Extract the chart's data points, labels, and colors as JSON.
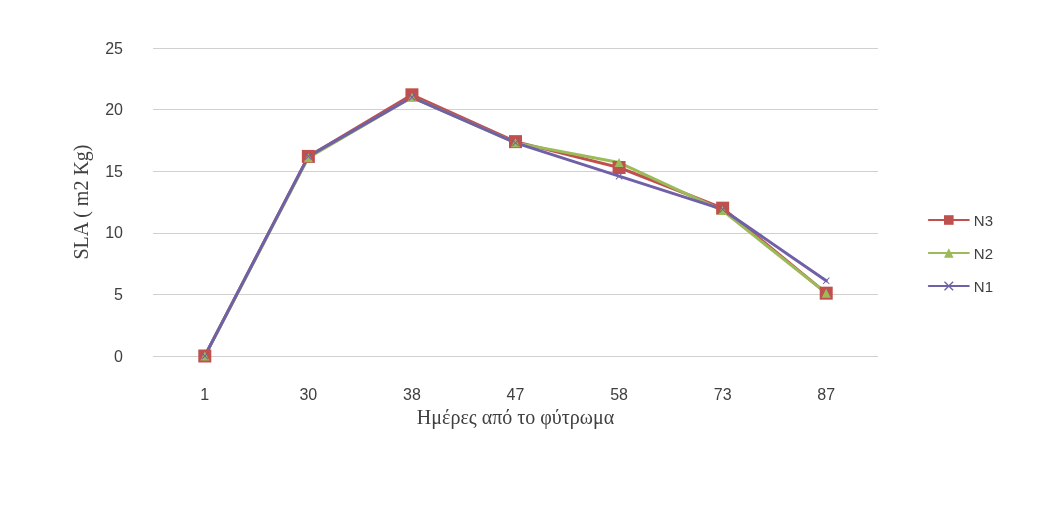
{
  "chart_data": {
    "type": "line",
    "xlabel": "Ημέρες από το φύτρωμα",
    "ylabel": "SLA ( m2 Kg)",
    "categories": [
      "1",
      "30",
      "38",
      "47",
      "58",
      "73",
      "87"
    ],
    "ylim": [
      0,
      25
    ],
    "yticks": [
      0,
      5,
      10,
      15,
      20,
      25
    ],
    "grid": "y",
    "legend": "right",
    "series": [
      {
        "name": "N3",
        "color": "#c0504d",
        "marker": "square",
        "values": [
          0,
          16.2,
          21.2,
          17.4,
          15.3,
          12.0,
          5.1
        ]
      },
      {
        "name": "N2",
        "color": "#9bbb59",
        "marker": "triangle",
        "values": [
          0,
          16.1,
          21.0,
          17.3,
          15.7,
          11.8,
          5.1
        ]
      },
      {
        "name": "N1",
        "color": "#7060a8",
        "marker": "cross",
        "values": [
          0,
          16.2,
          21.0,
          17.3,
          14.6,
          11.9,
          6.1
        ]
      }
    ]
  }
}
